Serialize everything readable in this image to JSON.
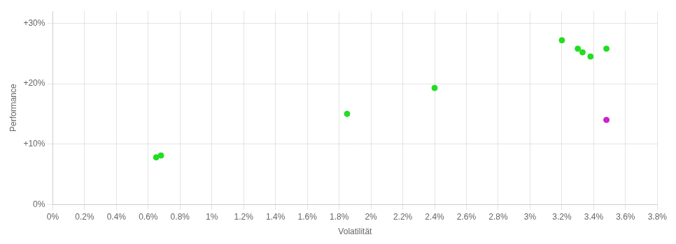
{
  "chart_data": {
    "type": "scatter",
    "xlabel": "Volatilität",
    "ylabel": "Performance",
    "xlim": [
      0.0,
      0.038
    ],
    "ylim": [
      0.0,
      0.32
    ],
    "xticks": [
      {
        "value": 0.0,
        "label": "0%"
      },
      {
        "value": 0.002,
        "label": "0.2%"
      },
      {
        "value": 0.004,
        "label": "0.4%"
      },
      {
        "value": 0.006,
        "label": "0.6%"
      },
      {
        "value": 0.008,
        "label": "0.8%"
      },
      {
        "value": 0.01,
        "label": "1%"
      },
      {
        "value": 0.012,
        "label": "1.2%"
      },
      {
        "value": 0.014,
        "label": "1.4%"
      },
      {
        "value": 0.016,
        "label": "1.6%"
      },
      {
        "value": 0.018,
        "label": "1.8%"
      },
      {
        "value": 0.02,
        "label": "2%"
      },
      {
        "value": 0.022,
        "label": "2.2%"
      },
      {
        "value": 0.024,
        "label": "2.4%"
      },
      {
        "value": 0.026,
        "label": "2.6%"
      },
      {
        "value": 0.028,
        "label": "2.8%"
      },
      {
        "value": 0.03,
        "label": "3%"
      },
      {
        "value": 0.032,
        "label": "3.2%"
      },
      {
        "value": 0.034,
        "label": "3.4%"
      },
      {
        "value": 0.036,
        "label": "3.6%"
      },
      {
        "value": 0.038,
        "label": "3.8%"
      }
    ],
    "yticks": [
      {
        "value": 0.0,
        "label": "0%"
      },
      {
        "value": 0.1,
        "label": "+10%"
      },
      {
        "value": 0.2,
        "label": "+20%"
      },
      {
        "value": 0.3,
        "label": "+30%"
      }
    ],
    "grid": true,
    "series": [
      {
        "color": "#22dd22",
        "x": [
          0.0065,
          0.0068,
          0.0185,
          0.024,
          0.032,
          0.033,
          0.0333,
          0.0338,
          0.0348
        ],
        "values": [
          0.078,
          0.081,
          0.15,
          0.193,
          0.272,
          0.258,
          0.252,
          0.245,
          0.258
        ]
      },
      {
        "color": "#cc22cc",
        "x": [
          0.0348
        ],
        "values": [
          0.14
        ]
      }
    ]
  }
}
